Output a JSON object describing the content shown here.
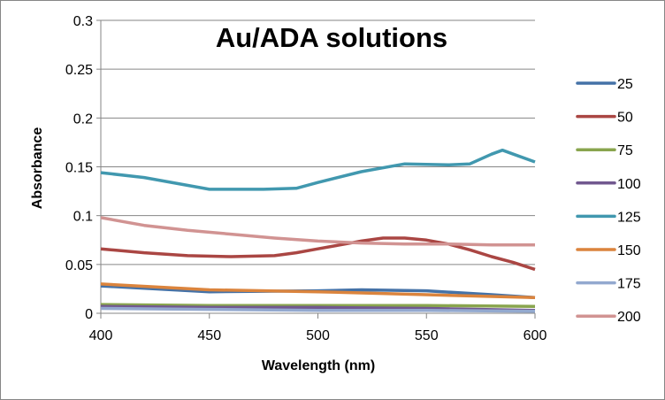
{
  "chart_data": {
    "type": "line",
    "title": "Au/ADA solutions",
    "xlabel": "Wavelength (nm)",
    "ylabel": "Absorbance",
    "xlim": [
      400,
      600
    ],
    "ylim": [
      0,
      0.3
    ],
    "xticks": [
      400,
      450,
      500,
      550,
      600
    ],
    "xtick_labels": [
      "400",
      "450",
      "500",
      "550",
      "600"
    ],
    "yticks": [
      0,
      0.05,
      0.1,
      0.15,
      0.2,
      0.25,
      0.3
    ],
    "ytick_labels": [
      "0",
      "0.05",
      "0.1",
      "0.15",
      "0.2",
      "0.25",
      "0.3"
    ],
    "grid": "horizontal",
    "legend": "right",
    "series": [
      {
        "name": "25",
        "color": "#4572A7",
        "x": [
          400,
          450,
          500,
          520,
          550,
          580,
          600
        ],
        "y": [
          0.028,
          0.022,
          0.023,
          0.024,
          0.023,
          0.019,
          0.016
        ]
      },
      {
        "name": "50",
        "color": "#AA4643",
        "x": [
          400,
          420,
          440,
          460,
          480,
          490,
          500,
          520,
          530,
          540,
          550,
          560,
          570,
          580,
          590,
          600
        ],
        "y": [
          0.066,
          0.062,
          0.059,
          0.058,
          0.059,
          0.062,
          0.066,
          0.074,
          0.077,
          0.077,
          0.075,
          0.071,
          0.065,
          0.058,
          0.052,
          0.045
        ]
      },
      {
        "name": "75",
        "color": "#89A54E",
        "x": [
          400,
          450,
          500,
          550,
          600
        ],
        "y": [
          0.009,
          0.008,
          0.008,
          0.008,
          0.007
        ]
      },
      {
        "name": "100",
        "color": "#71588F",
        "x": [
          400,
          450,
          500,
          550,
          600
        ],
        "y": [
          0.007,
          0.006,
          0.006,
          0.005,
          0.003
        ]
      },
      {
        "name": "125",
        "color": "#4198AF",
        "x": [
          400,
          420,
          450,
          475,
          490,
          500,
          520,
          540,
          560,
          570,
          580,
          585,
          590,
          600
        ],
        "y": [
          0.144,
          0.139,
          0.127,
          0.127,
          0.128,
          0.134,
          0.145,
          0.153,
          0.152,
          0.153,
          0.163,
          0.167,
          0.163,
          0.155
        ]
      },
      {
        "name": "150",
        "color": "#DB843D",
        "x": [
          400,
          450,
          500,
          550,
          600
        ],
        "y": [
          0.03,
          0.024,
          0.022,
          0.019,
          0.016
        ]
      },
      {
        "name": "175",
        "color": "#93A9CF",
        "x": [
          400,
          450,
          500,
          550,
          600
        ],
        "y": [
          0.005,
          0.004,
          0.003,
          0.003,
          0.002
        ]
      },
      {
        "name": "200",
        "color": "#D19392",
        "x": [
          400,
          420,
          440,
          460,
          480,
          500,
          520,
          540,
          560,
          580,
          600
        ],
        "y": [
          0.098,
          0.09,
          0.085,
          0.081,
          0.077,
          0.074,
          0.072,
          0.071,
          0.071,
          0.07,
          0.07
        ]
      }
    ]
  }
}
